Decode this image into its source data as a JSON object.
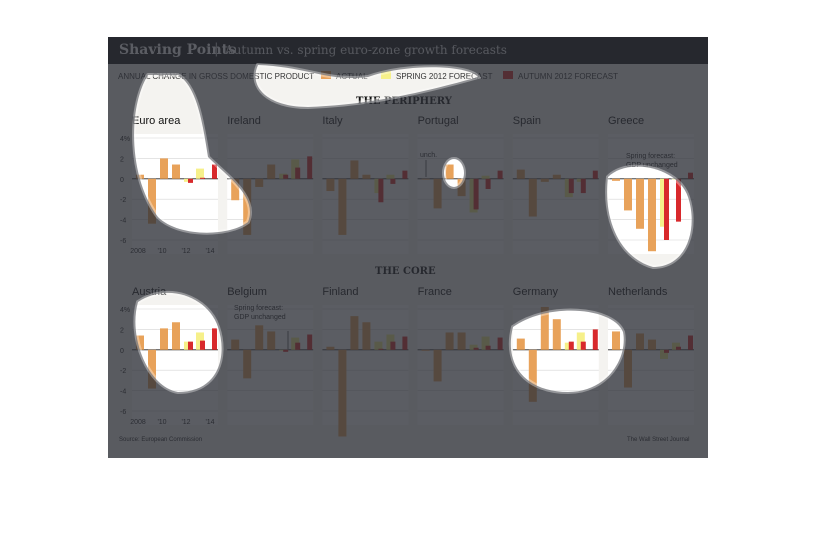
{
  "title": "Shaving Points",
  "title_separator": "|",
  "subtitle": "Autumn vs. spring euro-zone growth forecasts",
  "measure": "ANNUAL CHANGE IN GROSS DOMESTIC PRODUCT",
  "legend": [
    {
      "label": "ACTUAL",
      "color": "#e8a25a"
    },
    {
      "label": "SPRING 2012 FORECAST",
      "color": "#f6f08a"
    },
    {
      "label": "AUTUMN 2012 FORECAST",
      "color": "#d8292c"
    }
  ],
  "sections": [
    "THE PERIPHERY",
    "THE CORE"
  ],
  "source": "Source: European Commission",
  "credit": "The Wall Street Journal",
  "colors": {
    "actual": "#e8a25a",
    "spring": "#f6f08a",
    "autumn": "#d8292c",
    "frame": "#f4f3f0"
  },
  "chart_data": {
    "type": "bar",
    "y_tick_labels": [
      "4%",
      "2",
      "0",
      "-2",
      "-4",
      "-6"
    ],
    "ylim": [
      -6,
      4
    ],
    "x_tick_labels": [
      "2008",
      "'10",
      "'12",
      "'14"
    ],
    "years": [
      2008,
      2009,
      2010,
      2011,
      2012,
      2013,
      2014
    ],
    "annotations": [
      {
        "panel": "Portugal",
        "text": "unch."
      },
      {
        "panel": "Greece",
        "text": "Spring forecast: GDP unchanged"
      },
      {
        "panel": "Belgium",
        "text": "Spring forecast: GDP unchanged"
      }
    ],
    "panels": [
      {
        "name": "Euro area",
        "row": 0,
        "actual": [
          0.4,
          -4.4,
          2.0,
          1.4
        ],
        "spring": [
          null,
          null,
          null,
          null,
          -0.3,
          1.0
        ],
        "autumn": [
          null,
          null,
          null,
          null,
          -0.4,
          0.1,
          1.4
        ]
      },
      {
        "name": "Ireland",
        "row": 0,
        "actual": [
          -2.1,
          -5.5,
          -0.8,
          1.4
        ],
        "spring": [
          null,
          null,
          null,
          null,
          0.5,
          1.9
        ],
        "autumn": [
          null,
          null,
          null,
          null,
          0.4,
          1.1,
          2.2
        ]
      },
      {
        "name": "Italy",
        "row": 0,
        "actual": [
          -1.2,
          -5.5,
          1.8,
          0.4
        ],
        "spring": [
          null,
          null,
          null,
          null,
          -1.4,
          0.4
        ],
        "autumn": [
          null,
          null,
          null,
          null,
          -2.3,
          -0.5,
          0.8
        ]
      },
      {
        "name": "Portugal",
        "row": 0,
        "actual": [
          0.0,
          -2.9,
          1.4,
          -1.7
        ],
        "spring": [
          null,
          null,
          null,
          null,
          -3.3,
          0.3
        ],
        "autumn": [
          null,
          null,
          null,
          null,
          -3.0,
          -1.0,
          0.8
        ]
      },
      {
        "name": "Spain",
        "row": 0,
        "actual": [
          0.9,
          -3.7,
          -0.3,
          0.4
        ],
        "spring": [
          null,
          null,
          null,
          null,
          -1.8,
          -0.3
        ],
        "autumn": [
          null,
          null,
          null,
          null,
          -1.4,
          -1.4,
          0.8
        ]
      },
      {
        "name": "Greece",
        "row": 0,
        "actual": [
          -0.2,
          -3.1,
          -4.9,
          -7.1
        ],
        "spring": [
          null,
          null,
          null,
          null,
          -4.7,
          0.0
        ],
        "autumn": [
          null,
          null,
          null,
          null,
          -6.0,
          -4.2,
          0.6
        ]
      },
      {
        "name": "Austria",
        "row": 1,
        "actual": [
          1.4,
          -3.8,
          2.1,
          2.7
        ],
        "spring": [
          null,
          null,
          null,
          null,
          0.8,
          1.7
        ],
        "autumn": [
          null,
          null,
          null,
          null,
          0.8,
          0.9,
          2.1
        ]
      },
      {
        "name": "Belgium",
        "row": 1,
        "actual": [
          1.0,
          -2.8,
          2.4,
          1.8
        ],
        "spring": [
          null,
          null,
          null,
          null,
          0.0,
          1.2
        ],
        "autumn": [
          null,
          null,
          null,
          null,
          -0.2,
          0.7,
          1.5
        ]
      },
      {
        "name": "Finland",
        "row": 1,
        "actual": [
          0.3,
          -8.5,
          3.3,
          2.7
        ],
        "spring": [
          null,
          null,
          null,
          null,
          0.8,
          1.5
        ],
        "autumn": [
          null,
          null,
          null,
          null,
          0.1,
          0.8,
          1.3
        ]
      },
      {
        "name": "France",
        "row": 1,
        "actual": [
          -0.1,
          -3.1,
          1.7,
          1.7
        ],
        "spring": [
          null,
          null,
          null,
          null,
          0.5,
          1.3
        ],
        "autumn": [
          null,
          null,
          null,
          null,
          0.2,
          0.4,
          1.2
        ]
      },
      {
        "name": "Germany",
        "row": 1,
        "actual": [
          1.1,
          -5.1,
          4.2,
          3.0
        ],
        "spring": [
          null,
          null,
          null,
          null,
          0.7,
          1.7
        ],
        "autumn": [
          null,
          null,
          null,
          null,
          0.8,
          0.8,
          2.0
        ]
      },
      {
        "name": "Netherlands",
        "row": 1,
        "actual": [
          1.8,
          -3.7,
          1.6,
          1.0
        ],
        "spring": [
          null,
          null,
          null,
          null,
          -0.9,
          0.7
        ],
        "autumn": [
          null,
          null,
          null,
          null,
          -0.3,
          0.3,
          1.4
        ]
      }
    ]
  }
}
